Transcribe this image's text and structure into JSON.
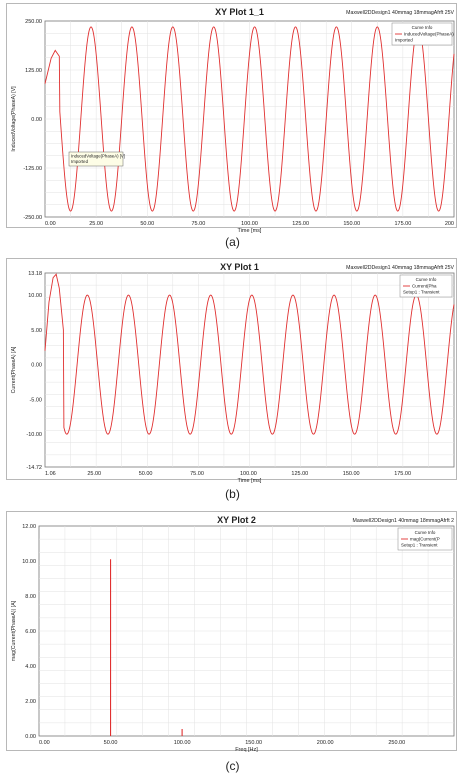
{
  "chart_data": [
    {
      "type": "line",
      "title": "XY Plot 1_1",
      "design_label": "Maxwell2DDesign1 40mmag 18mmagAfrft 25V",
      "xlabel": "Time [ms]",
      "ylabel": "InducedVoltage(PhaseA) [V]",
      "xlim": [
        0,
        200
      ],
      "ylim": [
        -250,
        250
      ],
      "x_ticks": [
        "0.00",
        "25.00",
        "50.00",
        "75.00",
        "100.00",
        "125.00",
        "150.00",
        "175.00",
        "200"
      ],
      "y_ticks": [
        "250.00",
        "125.00",
        "0.00",
        "-125.00",
        "-250.00"
      ],
      "legend": {
        "header": "Curve Info",
        "entries": [
          "InducedVoltage(PhaseA)",
          "Imported"
        ],
        "position": "top-right"
      },
      "annotation": [
        "InducedVoltage(PhaseA) [V]",
        "Imported"
      ],
      "series": [
        {
          "color": "#e03030",
          "amplitude": 235,
          "frequency_hz": 50,
          "phase_deg": 45,
          "x_start": 0,
          "x_end": 200,
          "startup": [
            [
              0,
              90
            ],
            [
              3,
              155
            ],
            [
              5,
              175
            ],
            [
              7,
              160
            ]
          ]
        }
      ],
      "caption": "(a)"
    },
    {
      "type": "line",
      "title": "XY Plot 1",
      "design_label": "Maxwell2DDesign1 40mmag 18mmagAfrft 25V",
      "xlabel": "Time [ms]",
      "ylabel": "Current(PhaseA) [A]",
      "xlim": [
        1.06,
        200
      ],
      "ylim": [
        -14.72,
        13.18
      ],
      "x_ticks": [
        "1.06",
        "25.00",
        "50.00",
        "75.00",
        "100.00",
        "125.00",
        "150.00",
        "175.00"
      ],
      "x_tick_values": [
        1.06,
        25,
        50,
        75,
        100,
        125,
        150,
        175
      ],
      "y_ticks": [
        "13.18",
        "10.00",
        "5.00",
        "0.00",
        "-5.00",
        "-10.00",
        "-14.72"
      ],
      "y_tick_values": [
        13.18,
        10,
        5,
        0,
        -5,
        -10,
        -14.72
      ],
      "legend": {
        "header": "Curve Info",
        "entries": [
          "Current(Pha",
          "Setup1 : Transient"
        ],
        "position": "top-right"
      },
      "series": [
        {
          "color": "#e03030",
          "amplitude": 10,
          "frequency_hz": 50,
          "phase_deg": 60,
          "x_start": 1.06,
          "x_end": 200,
          "startup": [
            [
              1.06,
              2
            ],
            [
              3,
              9
            ],
            [
              5,
              12.5
            ],
            [
              6.5,
              13
            ],
            [
              8,
              11
            ],
            [
              10,
              5
            ]
          ]
        }
      ],
      "caption": "(b)"
    },
    {
      "type": "bar",
      "title": "XY Plot 2",
      "design_label": "Maxwell2DDesign1 40mmag 18mmagAfrft 2",
      "xlabel": "Freq [Hz]",
      "ylabel": "mag(Current(PhaseA)) [A]",
      "xlim": [
        0,
        290
      ],
      "ylim": [
        0,
        12
      ],
      "x_ticks": [
        "0.00",
        "50.00",
        "100.00",
        "150.00",
        "200.00",
        "250.00"
      ],
      "x_tick_values": [
        0,
        50,
        100,
        150,
        200,
        250
      ],
      "y_ticks": [
        "12.00",
        "10.00",
        "8.00",
        "6.00",
        "4.00",
        "2.00",
        "0.00"
      ],
      "y_tick_values": [
        12,
        10,
        8,
        6,
        4,
        2,
        0
      ],
      "legend": {
        "header": "Curve Info",
        "entries": [
          "mag(Current(P",
          "Setup1 : Transient"
        ],
        "position": "top-right"
      },
      "series": [
        {
          "color": "#e03030",
          "x": [
            50,
            100
          ],
          "values": [
            10.1,
            0.4
          ]
        }
      ],
      "caption": "(c)"
    }
  ]
}
